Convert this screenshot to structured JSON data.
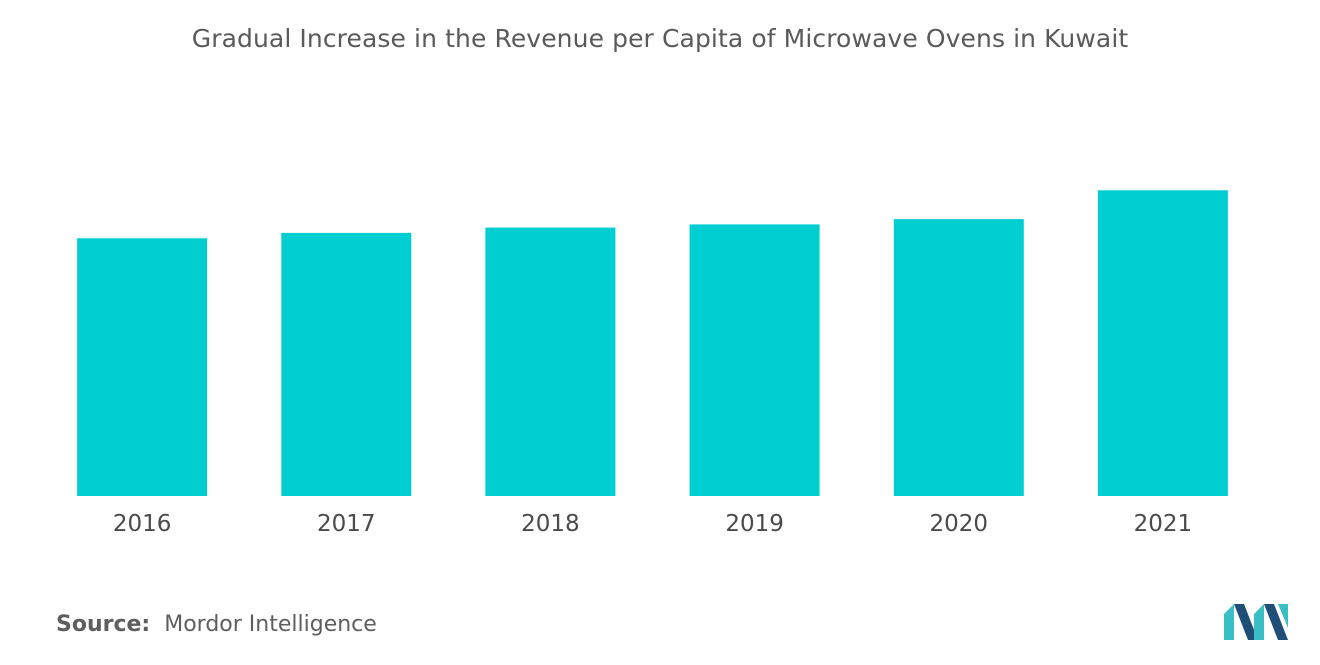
{
  "chart_data": {
    "type": "bar",
    "title": "Gradual Increase in the Revenue per Capita of Microwave Ovens in Kuwait",
    "categories": [
      "2016",
      "2017",
      "2018",
      "2019",
      "2020",
      "2021"
    ],
    "values": [
      24.2,
      24.7,
      25.2,
      25.5,
      26.0,
      28.7
    ],
    "xlabel": "",
    "ylabel": "",
    "ylim": [
      0,
      40
    ],
    "grid": false,
    "legend": "none",
    "bar_color": "#00CED1"
  },
  "source": {
    "label": "Source:",
    "value": "Mordor Intelligence"
  },
  "colors": {
    "title": "#5a5a5a",
    "axis_text": "#4a4a4a",
    "logo_dark": "#1f4e79",
    "logo_light": "#3bbfc6"
  }
}
